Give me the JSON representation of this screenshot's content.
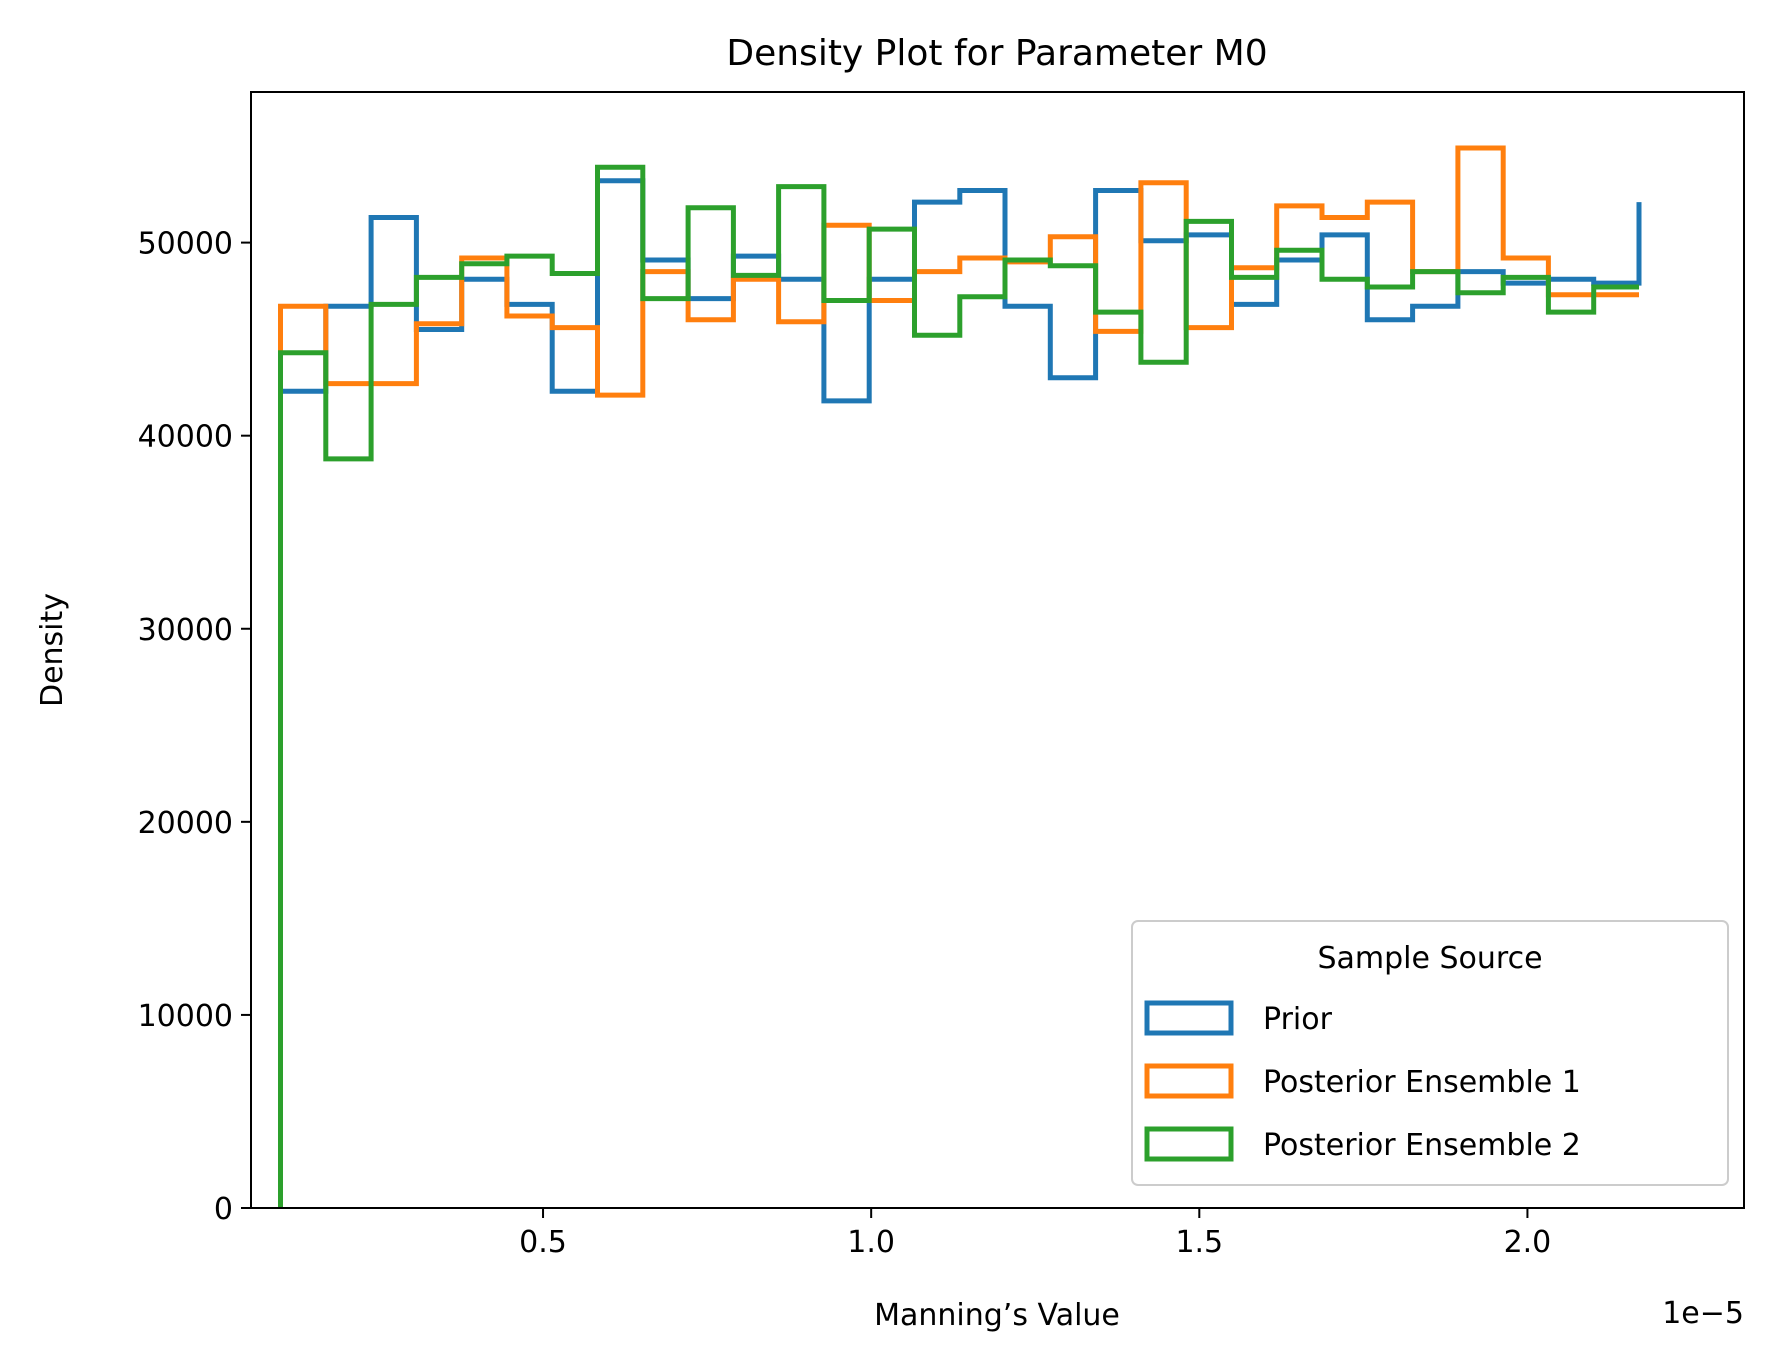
{
  "chart_data": {
    "type": "histogram-step",
    "title": "Density Plot for Parameter M0",
    "xlabel": "Manning’s Value",
    "ylabel": "Density",
    "x_offset_label": "1e−5",
    "x_unit_scale": 1e-05,
    "xlim": [
      0.055,
      2.33
    ],
    "ylim": [
      0,
      57800
    ],
    "xticks": [
      0.5,
      1.0,
      1.5,
      2.0
    ],
    "xtick_labels": [
      "0.5",
      "1.0",
      "1.5",
      "2.0"
    ],
    "yticks": [
      0,
      10000,
      20000,
      30000,
      40000,
      50000
    ],
    "ytick_labels": [
      "0",
      "10000",
      "20000",
      "30000",
      "40000",
      "50000"
    ],
    "grid": false,
    "legend": {
      "title": "Sample Source",
      "placement": "lower right"
    },
    "bin_edges": [
      0.1,
      0.169,
      0.238,
      0.307,
      0.376,
      0.445,
      0.514,
      0.583,
      0.652,
      0.721,
      0.79,
      0.859,
      0.928,
      0.997,
      1.066,
      1.135,
      1.204,
      1.273,
      1.342,
      1.411,
      1.48,
      1.549,
      1.618,
      1.687,
      1.756,
      1.825,
      1.894,
      1.963,
      2.032,
      2.101,
      2.17
    ],
    "series": [
      {
        "name": "Prior",
        "color": "#1f77b4",
        "values": [
          42300,
          46700,
          51300,
          45500,
          48100,
          46800,
          42300,
          53200,
          49100,
          47100,
          49300,
          48100,
          41800,
          48100,
          52100,
          52700,
          46700,
          43000,
          52700,
          50100,
          50400,
          46800,
          49100,
          50400,
          46000,
          46700,
          48500,
          47900,
          48100,
          47900,
          52100
        ]
      },
      {
        "name": "Posterior Ensemble 1",
        "color": "#ff7f0e",
        "values": [
          46700,
          42700,
          42700,
          45800,
          49200,
          46200,
          45600,
          42100,
          48500,
          46000,
          48100,
          45900,
          50900,
          47000,
          48500,
          49200,
          49000,
          50300,
          45400,
          53100,
          45600,
          48700,
          51900,
          51300,
          52100,
          48500,
          54900,
          49200,
          47300,
          47300,
          47300
        ]
      },
      {
        "name": "Posterior Ensemble 2",
        "color": "#2ca02c",
        "values": [
          44300,
          38800,
          46800,
          48200,
          48900,
          49300,
          48400,
          53900,
          47100,
          51800,
          48300,
          52900,
          47000,
          50700,
          45200,
          47200,
          49100,
          48800,
          46400,
          43800,
          51100,
          48200,
          49600,
          48100,
          47700,
          48500,
          47400,
          48200,
          46400,
          47700,
          47700
        ]
      }
    ]
  }
}
